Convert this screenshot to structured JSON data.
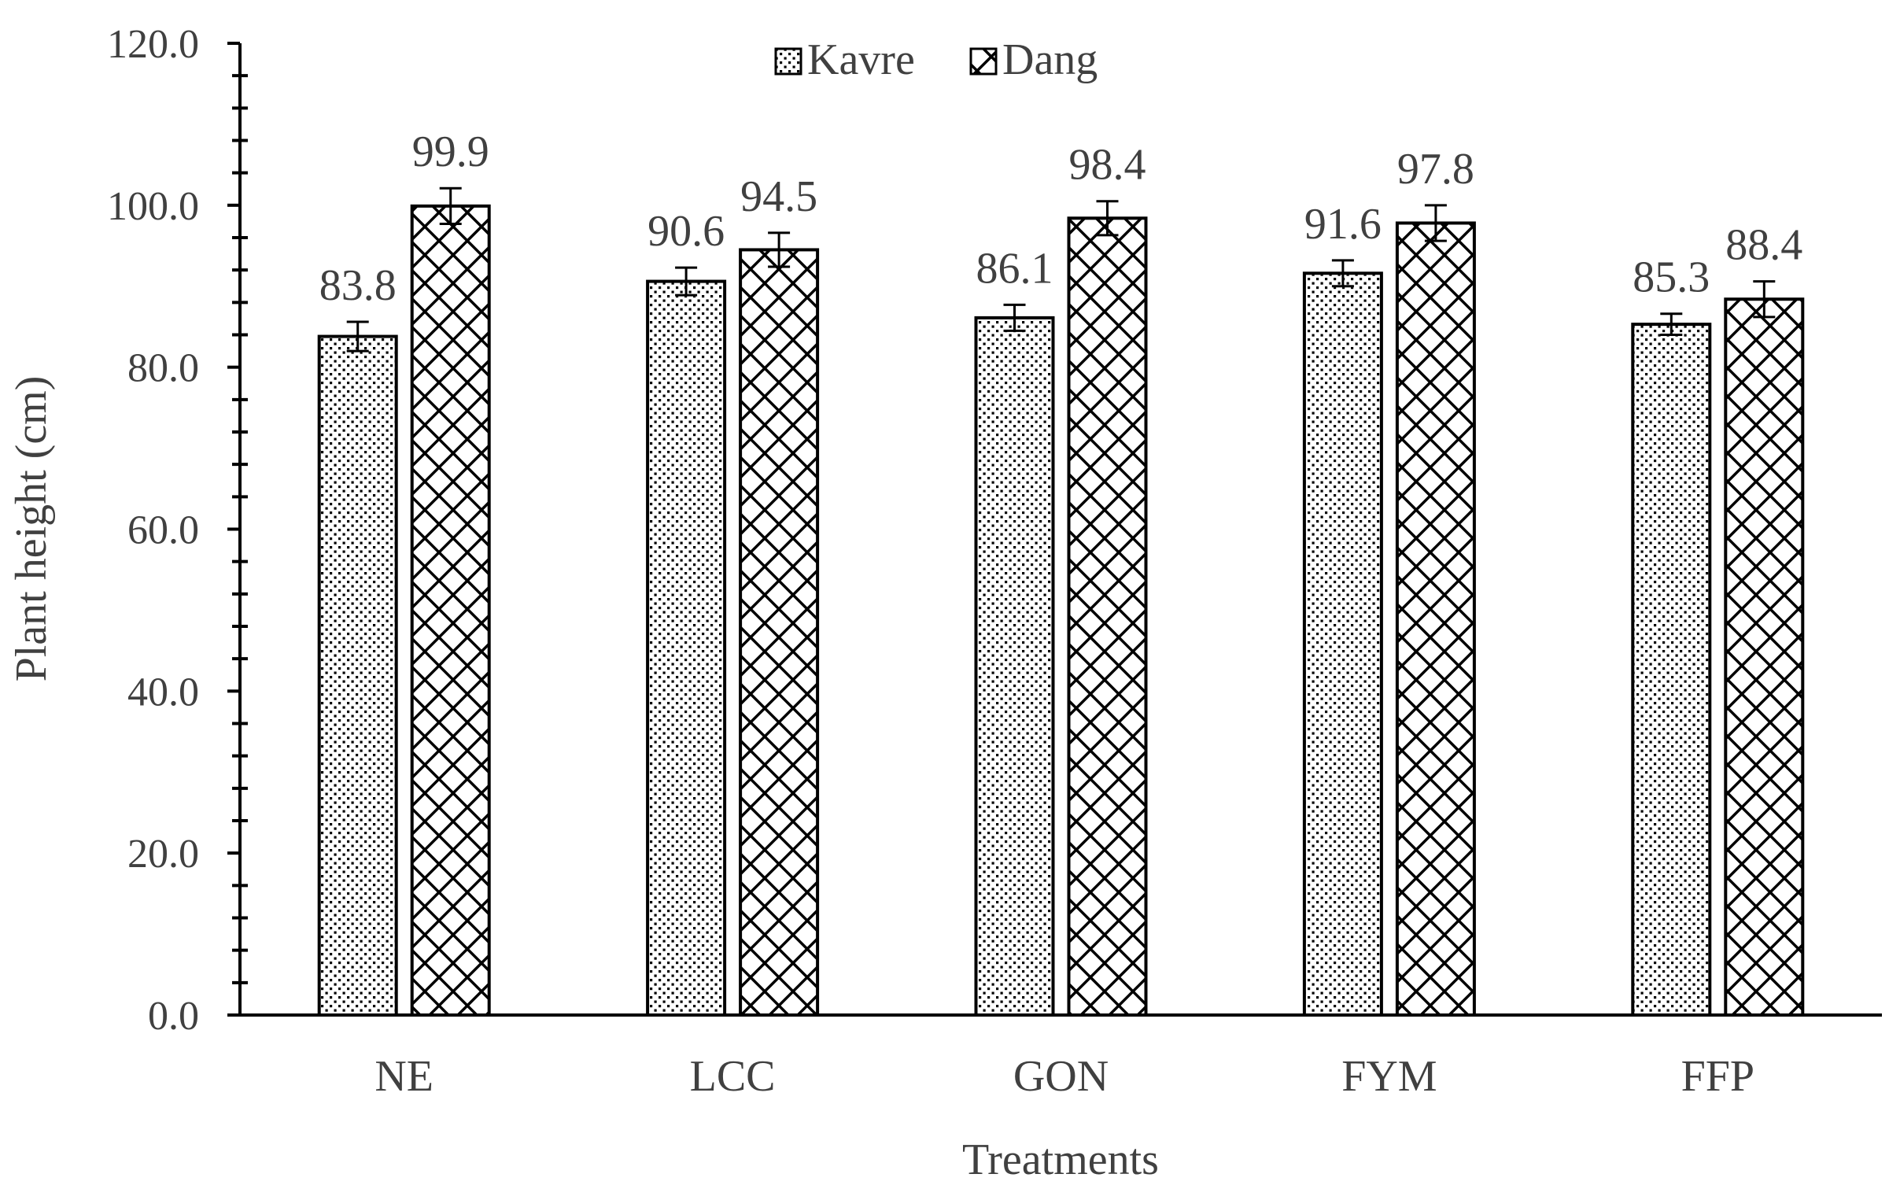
{
  "chart_data": {
    "type": "bar",
    "title": "",
    "xlabel": "Treatments",
    "ylabel": "Plant height (cm)",
    "ylim": [
      0,
      120
    ],
    "y_ticks": [
      "0.0",
      "20.0",
      "40.0",
      "60.0",
      "80.0",
      "100.0",
      "120.0"
    ],
    "categories": [
      "NE",
      "LCC",
      "GON",
      "FYM",
      "FFP"
    ],
    "series": [
      {
        "name": "Kavre",
        "pattern": "dots",
        "values": [
          83.8,
          90.6,
          86.1,
          91.6,
          85.3
        ],
        "labels": [
          "83.8",
          "90.6",
          "86.1",
          "91.6",
          "85.3"
        ],
        "error": [
          1.8,
          1.7,
          1.6,
          1.6,
          1.3
        ]
      },
      {
        "name": "Dang",
        "pattern": "crosshatch",
        "values": [
          99.9,
          94.5,
          98.4,
          97.8,
          88.4
        ],
        "labels": [
          "99.9",
          "94.5",
          "98.4",
          "97.8",
          "88.4"
        ],
        "error": [
          2.2,
          2.1,
          2.1,
          2.2,
          2.2
        ]
      }
    ],
    "legend_position": "top-center",
    "grid": false,
    "error_bars": true,
    "colors": {
      "bar_stroke": "#000000",
      "text": "#404040",
      "fill": "#ffffff"
    }
  }
}
